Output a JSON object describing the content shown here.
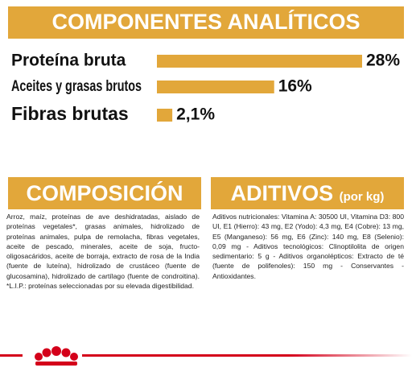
{
  "chart_data": {
    "type": "bar",
    "orientation": "horizontal",
    "title": "COMPONENTES ANALÍTICOS",
    "categories": [
      "Proteína bruta",
      "Aceites y grasas brutos",
      "Fibras brutas"
    ],
    "values": [
      28,
      16,
      2.1
    ],
    "value_labels": [
      "28%",
      "16%",
      "2,1%"
    ],
    "color": "#e2a73a"
  },
  "composicion": {
    "title": "COMPOSICIÓN",
    "text": "Arroz, maíz, proteínas de ave deshidratadas, aislado de proteínas vegetales*, grasas animales, hidrolizado de proteínas animales, pulpa de remolacha, fibras vegetales, aceite de pescado, minerales, aceite de soja, fructo-oligosacáridos, aceite de borraja, extracto de rosa de la India (fuente de luteína), hidrolizado de crustáceo (fuente de glucosamina), hidrolizado de cartílago (fuente de condroitina). *L.I.P.: proteínas seleccionadas por su elevada digestibilidad."
  },
  "aditivos": {
    "title": "ADITIVOS",
    "subtitle": "(por kg)",
    "text": "Aditivos nutricionales: Vitamina A: 30500 UI, Vitamina D3: 800 UI, E1 (Hierro): 43 mg, E2 (Yodo): 4,3 mg, E4 (Cobre): 13 mg, E5 (Manganeso): 56 mg, E6 (Zinc): 140 mg, E8 (Selenio): 0,09 mg - Aditivos tecnológicos: Clinoptilolita de origen sedimentario: 5 g - Aditivos organolépticos: Extracto de té (fuente de polifenoles): 150 mg - Conservantes - Antioxidantes."
  }
}
